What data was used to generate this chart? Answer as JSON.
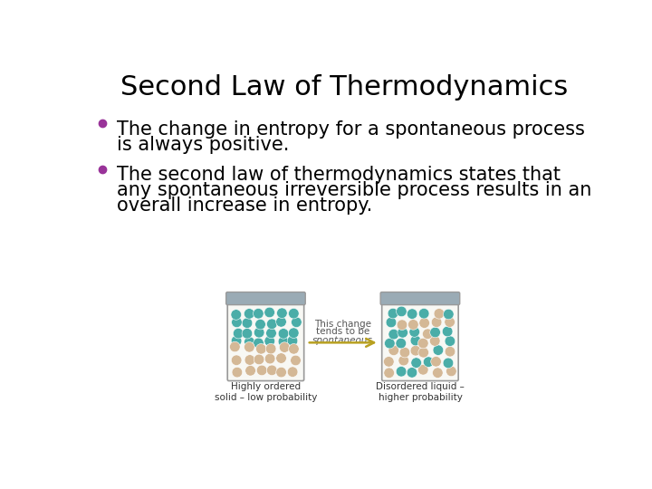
{
  "title": "Second Law of Thermodynamics",
  "title_fontsize": 22,
  "title_color": "#000000",
  "background_color": "#ffffff",
  "bullet_color": "#993399",
  "bullet1_line1": "The change in entropy for a spontaneous process",
  "bullet1_line2": "is always positive.",
  "bullet2_line1": "The second law of thermodynamics states that",
  "bullet2_line2": "any spontaneous irreversible process results in an",
  "bullet2_line3": "overall increase in entropy.",
  "text_fontsize": 15,
  "jar_label_left": "Highly ordered\nsolid – low probability",
  "jar_label_right": "Disordered liquid –\nhigher probability",
  "arrow_text_line1": "This change",
  "arrow_text_line2": "tends to be",
  "arrow_text_line3": "spontaneous",
  "teal_color": "#4aada8",
  "tan_color": "#d4b896",
  "jar_bg_color": "#f8f8f4",
  "jar_border_color": "#999999",
  "jar_lid_color": "#9aabb5",
  "arrow_color": "#b8a020",
  "arrow_text_color": "#555555",
  "label_fontsize": 7.5,
  "arrow_fontsize": 7.5
}
